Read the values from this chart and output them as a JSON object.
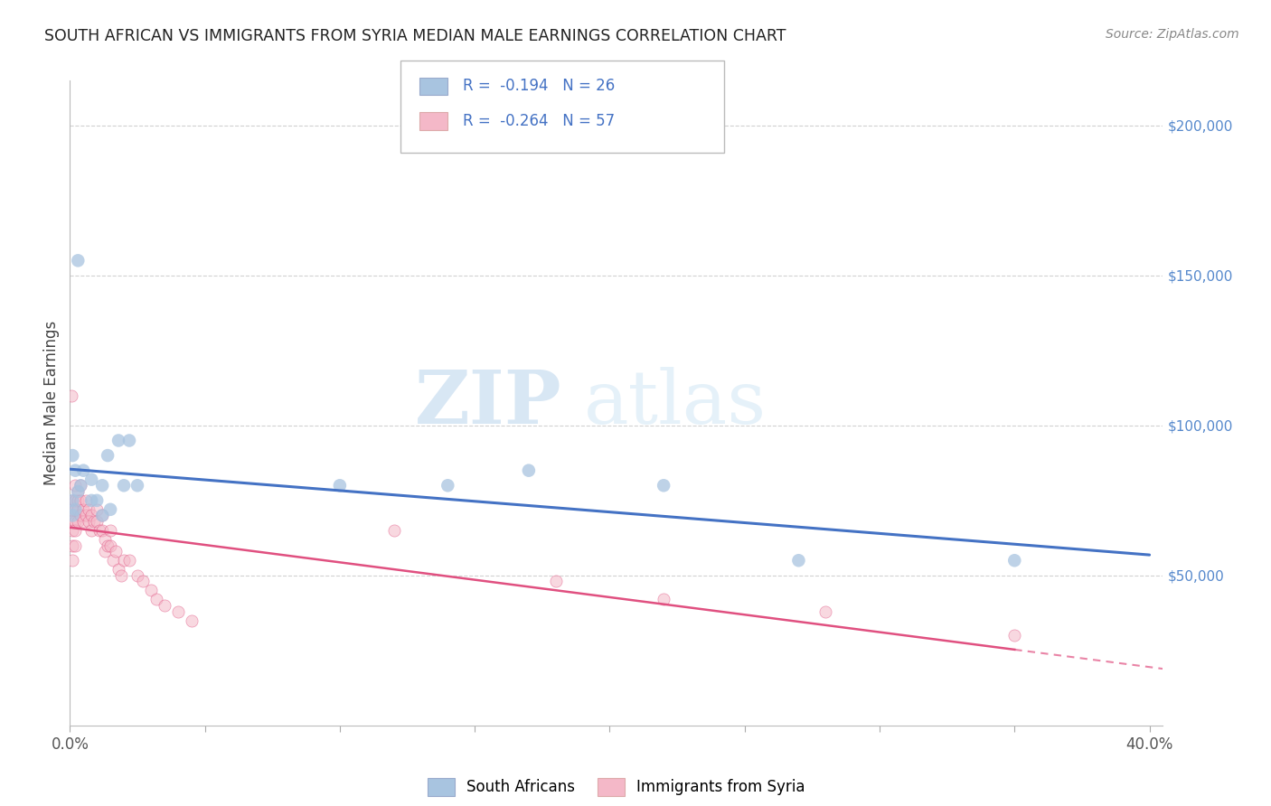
{
  "title": "SOUTH AFRICAN VS IMMIGRANTS FROM SYRIA MEDIAN MALE EARNINGS CORRELATION CHART",
  "source": "Source: ZipAtlas.com",
  "ylabel": "Median Male Earnings",
  "right_yticks": [
    0,
    50000,
    100000,
    150000,
    200000
  ],
  "right_yticklabels": [
    "",
    "$50,000",
    "$100,000",
    "$150,000",
    "$200,000"
  ],
  "legend_blue_label": "South Africans",
  "legend_pink_label": "Immigrants from Syria",
  "legend_r_blue": "R =  -0.194",
  "legend_n_blue": "N = 26",
  "legend_r_pink": "R =  -0.264",
  "legend_n_pink": "N = 57",
  "blue_color": "#a8c4e0",
  "blue_line_color": "#4472c4",
  "pink_color": "#f4b8c8",
  "pink_line_color": "#e05080",
  "watermark_zip": "ZIP",
  "watermark_atlas": "atlas",
  "south_african_x": [
    0.001,
    0.003,
    0.002,
    0.001,
    0.001,
    0.002,
    0.003,
    0.004,
    0.005,
    0.008,
    0.008,
    0.01,
    0.012,
    0.012,
    0.014,
    0.015,
    0.018,
    0.02,
    0.022,
    0.025,
    0.1,
    0.14,
    0.17,
    0.22,
    0.27,
    0.35
  ],
  "south_african_y": [
    75000,
    155000,
    85000,
    70000,
    90000,
    72000,
    78000,
    80000,
    85000,
    82000,
    75000,
    75000,
    80000,
    70000,
    90000,
    72000,
    95000,
    80000,
    95000,
    80000,
    80000,
    80000,
    85000,
    80000,
    55000,
    55000
  ],
  "syria_x": [
    0.0005,
    0.001,
    0.001,
    0.001,
    0.001,
    0.001,
    0.001,
    0.002,
    0.002,
    0.002,
    0.002,
    0.002,
    0.002,
    0.003,
    0.003,
    0.003,
    0.003,
    0.004,
    0.004,
    0.004,
    0.005,
    0.005,
    0.006,
    0.006,
    0.007,
    0.007,
    0.008,
    0.008,
    0.009,
    0.01,
    0.01,
    0.011,
    0.012,
    0.012,
    0.013,
    0.013,
    0.014,
    0.015,
    0.015,
    0.016,
    0.017,
    0.018,
    0.019,
    0.02,
    0.022,
    0.025,
    0.027,
    0.03,
    0.032,
    0.035,
    0.04,
    0.045,
    0.12,
    0.18,
    0.22,
    0.28,
    0.35
  ],
  "syria_y": [
    110000,
    75000,
    72000,
    68000,
    65000,
    60000,
    55000,
    80000,
    75000,
    72000,
    68000,
    65000,
    60000,
    78000,
    75000,
    72000,
    68000,
    80000,
    75000,
    70000,
    72000,
    68000,
    75000,
    70000,
    72000,
    68000,
    70000,
    65000,
    68000,
    72000,
    68000,
    65000,
    70000,
    65000,
    62000,
    58000,
    60000,
    65000,
    60000,
    55000,
    58000,
    52000,
    50000,
    55000,
    55000,
    50000,
    48000,
    45000,
    42000,
    40000,
    38000,
    35000,
    65000,
    48000,
    42000,
    38000,
    30000
  ],
  "xlim": [
    0,
    0.405
  ],
  "ylim": [
    0,
    215000
  ],
  "background_color": "#ffffff",
  "grid_color": "#cccccc"
}
